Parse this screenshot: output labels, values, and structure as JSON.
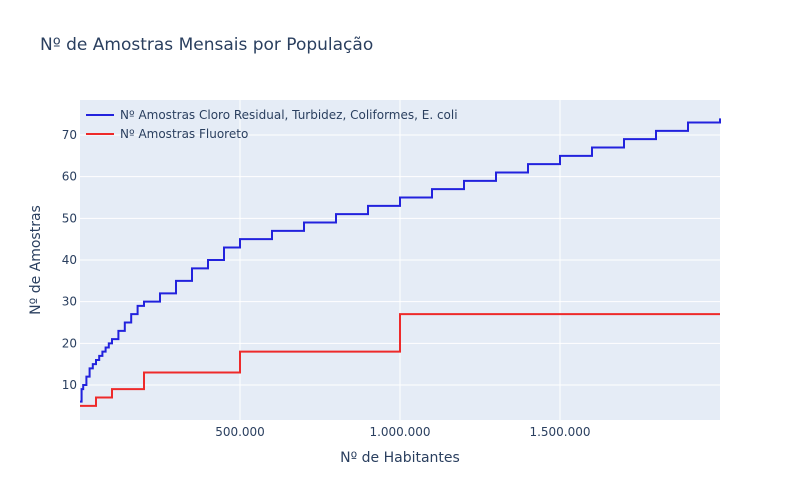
{
  "chart_data": {
    "type": "line",
    "title": "Nº de Amostras Mensais por População",
    "xlabel": "Nº de Habitantes",
    "ylabel": "Nº de Amostras",
    "xlim": [
      0,
      2000000
    ],
    "ylim": [
      1.6,
      78.4
    ],
    "x_ticks": [
      500000,
      1000000,
      1500000
    ],
    "x_tick_labels": [
      "500.000",
      "1.000.000",
      "1.500.000"
    ],
    "y_ticks": [
      10,
      20,
      30,
      40,
      50,
      60,
      70
    ],
    "y_tick_labels": [
      "10",
      "20",
      "30",
      "40",
      "50",
      "60",
      "70"
    ],
    "grid": true,
    "legend_position": "top-left",
    "series": [
      {
        "name": "Nº Amostras Cloro Residual, Turbidez, Coliformes, E. coli",
        "color": "#2222dd",
        "step": true,
        "x": [
          0,
          5000,
          10000,
          20000,
          30000,
          40000,
          50000,
          60000,
          70000,
          80000,
          90000,
          100000,
          120000,
          140000,
          160000,
          180000,
          200000,
          250000,
          300000,
          350000,
          400000,
          450000,
          500000,
          600000,
          700000,
          800000,
          900000,
          1000000,
          1100000,
          1200000,
          1300000,
          1400000,
          1500000,
          1600000,
          1700000,
          1800000,
          1900000,
          2000000
        ],
        "y": [
          6,
          9,
          10,
          12,
          14,
          15,
          16,
          17,
          18,
          19,
          20,
          21,
          23,
          25,
          27,
          29,
          30,
          32,
          35,
          38,
          40,
          43,
          45,
          47,
          49,
          51,
          53,
          55,
          57,
          59,
          61,
          63,
          65,
          67,
          69,
          71,
          73,
          74
        ]
      },
      {
        "name": "Nº Amostras Fluoreto",
        "color": "#ee2a2a",
        "step": true,
        "x": [
          0,
          50000,
          100000,
          200000,
          500000,
          1000000,
          2000000
        ],
        "y": [
          5,
          7,
          9,
          13,
          18,
          27,
          27
        ]
      }
    ]
  }
}
